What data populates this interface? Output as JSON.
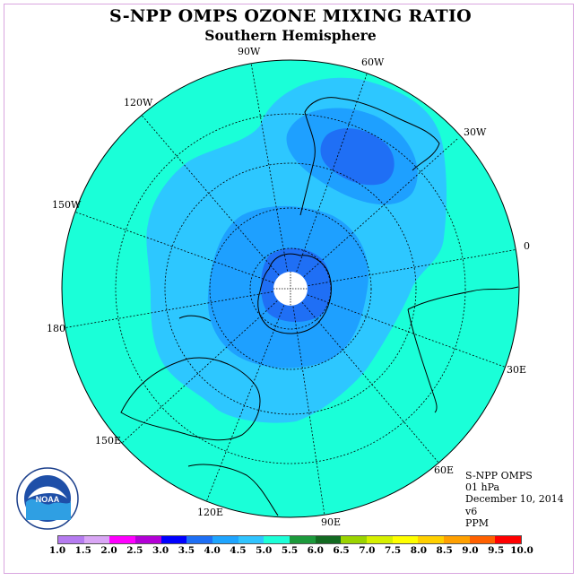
{
  "title": "S-NPP OMPS OZONE MIXING RATIO",
  "subtitle": "Southern Hemisphere",
  "longitude_labels": [
    "90W",
    "60W",
    "30W",
    "0",
    "30E",
    "60E",
    "90E",
    "120E",
    "150E",
    "180",
    "150W",
    "120W"
  ],
  "info": {
    "line1": "S-NPP OMPS",
    "line2": "01 hPa",
    "line3": "December 10, 2014",
    "line4": "v6",
    "line5": "PPM"
  },
  "logo_text": "NOAA",
  "colorbar": {
    "ticks": [
      "1.0",
      "1.5",
      "2.0",
      "2.5",
      "3.0",
      "3.5",
      "4.0",
      "4.5",
      "5.0",
      "5.5",
      "6.0",
      "6.5",
      "7.0",
      "7.5",
      "8.0",
      "8.5",
      "9.0",
      "9.5",
      "10.0"
    ],
    "colors": [
      "#b57bf0",
      "#d9a6f5",
      "#ff00ff",
      "#b300d6",
      "#0000ff",
      "#1e6ff5",
      "#1fa5ff",
      "#30c4ff",
      "#1dffd8",
      "#1c9a3c",
      "#126a21",
      "#9ad400",
      "#d6f000",
      "#ffff00",
      "#ffd000",
      "#ffa000",
      "#ff6000",
      "#ff0000",
      "#8b5a2b"
    ]
  },
  "map_colors": {
    "level_4_5": "#1affd8",
    "level_4_0": "#2dc7ff",
    "level_3_5": "#1ea0ff",
    "level_3_0": "#1f6ff5",
    "pole_fill": "#ffffff"
  }
}
